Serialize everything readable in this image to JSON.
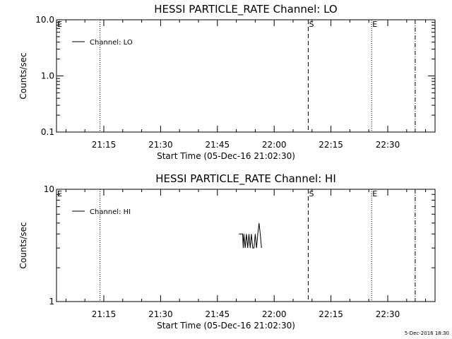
{
  "chart_data": [
    {
      "type": "line",
      "title": "HESSI PARTICLE_RATE Channel: LO",
      "xlabel": "Start Time (05-Dec-16 21:02:30)",
      "ylabel": "Counts/sec",
      "yscale": "log",
      "ylim": [
        0.1,
        10.0
      ],
      "yticks": [
        {
          "value": 0.1,
          "label": "0.1"
        },
        {
          "value": 1.0,
          "label": "1.0"
        },
        {
          "value": 10.0,
          "label": "10.0"
        }
      ],
      "xlim": [
        "21:02:30",
        "22:42:30"
      ],
      "xticks": [
        "21:15",
        "21:30",
        "21:45",
        "22:00",
        "22:15",
        "22:30"
      ],
      "grid": false,
      "legend": {
        "position": "top-left",
        "entries": [
          "Channel: LO"
        ]
      },
      "series": [
        {
          "name": "Channel: LO",
          "points": []
        }
      ],
      "markers": [
        {
          "time": "21:02:30",
          "label": "E",
          "style": "solid"
        },
        {
          "time": "21:14:00",
          "label": "",
          "style": "dotted"
        },
        {
          "time": "22:09:00",
          "label": "S",
          "style": "dashed"
        },
        {
          "time": "22:25:45",
          "label": "E",
          "style": "dotted"
        },
        {
          "time": "22:37:15",
          "label": "",
          "style": "dashdot"
        }
      ]
    },
    {
      "type": "line",
      "title": "HESSI PARTICLE_RATE Channel: HI",
      "xlabel": "Start Time (05-Dec-16 21:02:30)",
      "ylabel": "Counts/sec",
      "yscale": "log",
      "ylim": [
        1,
        10
      ],
      "yticks": [
        {
          "value": 1,
          "label": "1"
        },
        {
          "value": 10,
          "label": "10"
        }
      ],
      "xlim": [
        "21:02:30",
        "22:42:30"
      ],
      "xticks": [
        "21:15",
        "21:30",
        "21:45",
        "22:00",
        "22:15",
        "22:30"
      ],
      "grid": false,
      "legend": {
        "position": "top-left",
        "entries": [
          "Channel: HI"
        ]
      },
      "series": [
        {
          "name": "Channel: HI",
          "points": [
            [
              "21:50:40",
              4.0
            ],
            [
              "21:51:40",
              4.0
            ],
            [
              "21:51:50",
              3.0
            ],
            [
              "21:52:00",
              4.0
            ],
            [
              "21:52:20",
              3.0
            ],
            [
              "21:52:40",
              4.0
            ],
            [
              "21:53:00",
              3.0
            ],
            [
              "21:53:20",
              4.0
            ],
            [
              "21:53:40",
              3.0
            ],
            [
              "21:54:00",
              4.0
            ],
            [
              "21:54:20",
              3.0
            ],
            [
              "21:54:40",
              3.0
            ],
            [
              "21:55:00",
              4.0
            ],
            [
              "21:55:20",
              3.0
            ],
            [
              "21:55:40",
              4.0
            ],
            [
              "21:56:00",
              5.0
            ],
            [
              "21:56:20",
              4.0
            ],
            [
              "21:56:40",
              3.0
            ]
          ]
        }
      ],
      "markers": [
        {
          "time": "21:02:30",
          "label": "E",
          "style": "solid"
        },
        {
          "time": "21:14:00",
          "label": "",
          "style": "dotted"
        },
        {
          "time": "22:09:00",
          "label": "S",
          "style": "dashed"
        },
        {
          "time": "22:25:45",
          "label": "E",
          "style": "dotted"
        },
        {
          "time": "22:37:15",
          "label": "",
          "style": "dashdot"
        }
      ]
    }
  ],
  "footer": {
    "timestamp": "5-Dec-2016 18:30"
  }
}
